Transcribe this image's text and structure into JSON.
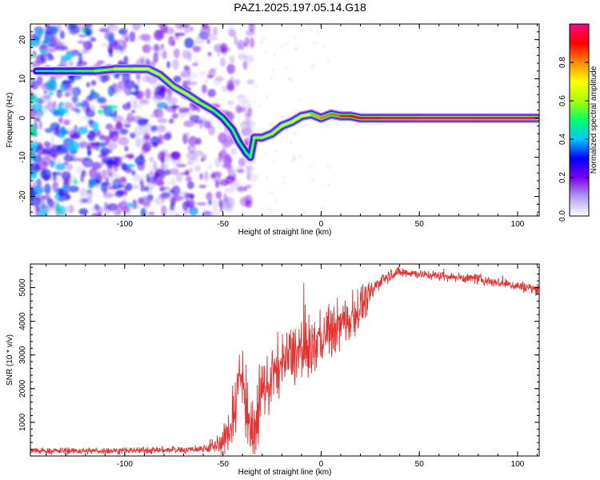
{
  "title": "PAZ1.2025.197.05.14.G18",
  "colors": {
    "snr_line": "#e8312f",
    "ridge_core": "#ff0000",
    "background": "#ffffff"
  },
  "chart_data": [
    {
      "type": "heatmap",
      "name": "spectrogram",
      "xlabel": "Height of straight line (km)",
      "ylabel": "Frequency (Hz)",
      "xlim": [
        -148,
        111
      ],
      "ylim": [
        -25,
        24
      ],
      "xticks": [
        -100,
        -50,
        0,
        50,
        100
      ],
      "yticks": [
        -20,
        -10,
        0,
        10,
        20
      ],
      "colorbar": {
        "label": "Normalized spectral amplitude",
        "range": [
          0,
          1
        ],
        "ticks": [
          0.0,
          0.2,
          0.4,
          0.6,
          0.8
        ],
        "tick_labels": [
          "0.0",
          "0.2",
          "0.4",
          "0.6",
          "0.8"
        ],
        "stops": [
          "#ffffff",
          "#b19cf0",
          "#7b00ee",
          "#0000ff",
          "#00c8ff",
          "#00ff66",
          "#aaff00",
          "#ffff00",
          "#ff8800",
          "#ff0000",
          "#ff0088"
        ]
      },
      "ridge": {
        "height_km": [
          -145,
          -135,
          -125,
          -115,
          -105,
          -95,
          -88,
          -82,
          -75,
          -68,
          -62,
          -55,
          -50,
          -45,
          -42,
          -38,
          -36,
          -34,
          -30,
          -25,
          -20,
          -15,
          -10,
          -5,
          0,
          5,
          10,
          15,
          20,
          30,
          50,
          80,
          110
        ],
        "frequency_hz": [
          12,
          12,
          12,
          12,
          12.5,
          12.5,
          12.5,
          11,
          8,
          6,
          4,
          2,
          0,
          -3,
          -6,
          -9,
          -10,
          -5,
          -5,
          -4,
          -2,
          -1,
          0.5,
          1,
          0,
          1,
          0.5,
          0.5,
          0,
          0,
          0,
          0,
          0
        ],
        "amplitude": [
          0.2,
          0.25,
          0.3,
          0.35,
          0.45,
          0.55,
          0.55,
          0.45,
          0.45,
          0.5,
          0.45,
          0.35,
          0.3,
          0.35,
          0.3,
          0.3,
          0.3,
          0.4,
          0.45,
          0.45,
          0.5,
          0.55,
          0.55,
          0.6,
          0.75,
          0.7,
          0.8,
          0.85,
          0.9,
          0.95,
          1.0,
          1.0,
          1.0
        ]
      },
      "noise_region_km": [
        -148,
        -35
      ]
    },
    {
      "type": "line",
      "name": "snr",
      "xlabel": "Height of straight line (km)",
      "ylabel": "SNR (10 * v/v)",
      "xlim": [
        -148,
        111
      ],
      "ylim": [
        0,
        5700
      ],
      "xticks": [
        -100,
        -50,
        0,
        50,
        100
      ],
      "yticks": [
        1000,
        2000,
        3000,
        4000,
        5000
      ],
      "trend": {
        "height_km": [
          -148,
          -120,
          -90,
          -70,
          -60,
          -55,
          -50,
          -47,
          -45,
          -43,
          -41,
          -40,
          -38,
          -36,
          -34,
          -32,
          -30,
          -25,
          -20,
          -15,
          -10,
          -5,
          0,
          5,
          10,
          15,
          20,
          25,
          30,
          35,
          40,
          45,
          50,
          60,
          70,
          80,
          90,
          100,
          105,
          111
        ],
        "snr": [
          150,
          150,
          170,
          180,
          220,
          280,
          400,
          700,
          1200,
          1800,
          2500,
          2200,
          1600,
          900,
          300,
          1300,
          1900,
          2300,
          2700,
          3000,
          3100,
          3200,
          3500,
          3700,
          3900,
          4100,
          4400,
          4800,
          5200,
          5400,
          5450,
          5450,
          5400,
          5350,
          5300,
          5250,
          5150,
          5050,
          5000,
          4950
        ]
      },
      "spread": {
        "height_km": [
          -148,
          -60,
          -50,
          -45,
          -40,
          -35,
          -30,
          -20,
          -10,
          0,
          10,
          20,
          30,
          50,
          111
        ],
        "snr": [
          80,
          100,
          300,
          800,
          1200,
          900,
          800,
          800,
          900,
          700,
          700,
          500,
          200,
          120,
          150
        ]
      }
    }
  ]
}
